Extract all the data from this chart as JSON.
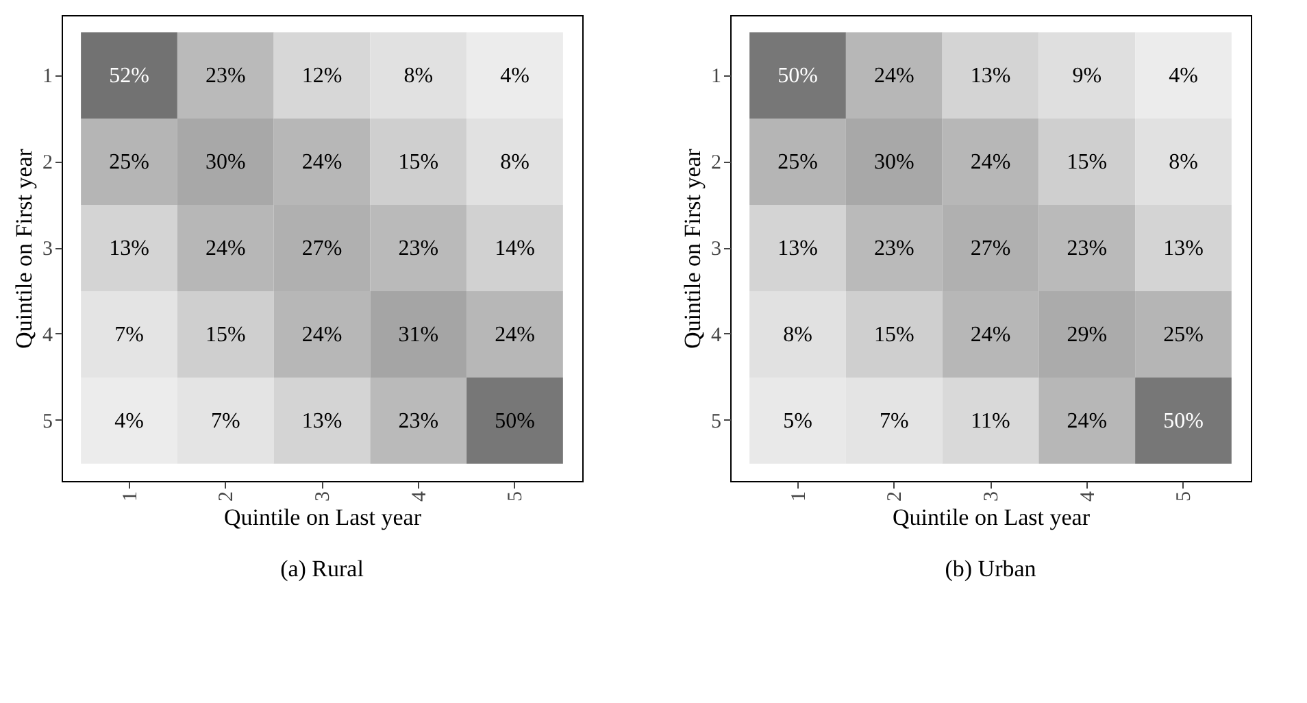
{
  "chart_data": [
    {
      "type": "heatmap",
      "title": "(a) Rural",
      "xlabel": "Quintile on Last year",
      "ylabel": "Quintile on First year",
      "categories": [
        "1",
        "2",
        "3",
        "4",
        "5"
      ],
      "y_categories": [
        "1",
        "2",
        "3",
        "4",
        "5"
      ],
      "cells": [
        [
          52,
          23,
          12,
          8,
          4
        ],
        [
          25,
          30,
          24,
          15,
          8
        ],
        [
          13,
          24,
          27,
          23,
          14
        ],
        [
          7,
          15,
          24,
          31,
          24
        ],
        [
          4,
          7,
          13,
          23,
          50
        ]
      ],
      "cell_labels": [
        [
          "52%",
          "23%",
          "12%",
          "8%",
          "4%"
        ],
        [
          "25%",
          "30%",
          "24%",
          "15%",
          "8%"
        ],
        [
          "13%",
          "24%",
          "27%",
          "23%",
          "14%"
        ],
        [
          "7%",
          "15%",
          "24%",
          "31%",
          "24%"
        ],
        [
          "4%",
          "7%",
          "13%",
          "23%",
          "50%"
        ]
      ],
      "grid": false,
      "legend": false
    },
    {
      "type": "heatmap",
      "title": "(b) Urban",
      "xlabel": "Quintile on Last year",
      "ylabel": "Quintile on First year",
      "categories": [
        "1",
        "2",
        "3",
        "4",
        "5"
      ],
      "y_categories": [
        "1",
        "2",
        "3",
        "4",
        "5"
      ],
      "cells": [
        [
          50,
          24,
          13,
          9,
          4
        ],
        [
          25,
          30,
          24,
          15,
          8
        ],
        [
          13,
          23,
          27,
          23,
          13
        ],
        [
          8,
          15,
          24,
          29,
          25
        ],
        [
          5,
          7,
          11,
          24,
          50
        ]
      ],
      "cell_labels": [
        [
          "50%",
          "24%",
          "13%",
          "9%",
          "4%"
        ],
        [
          "25%",
          "30%",
          "24%",
          "15%",
          "8%"
        ],
        [
          "13%",
          "23%",
          "27%",
          "23%",
          "13%"
        ],
        [
          "8%",
          "15%",
          "24%",
          "29%",
          "25%"
        ],
        [
          "5%",
          "7%",
          "11%",
          "24%",
          "50%"
        ]
      ],
      "grid": false,
      "legend": false
    }
  ]
}
